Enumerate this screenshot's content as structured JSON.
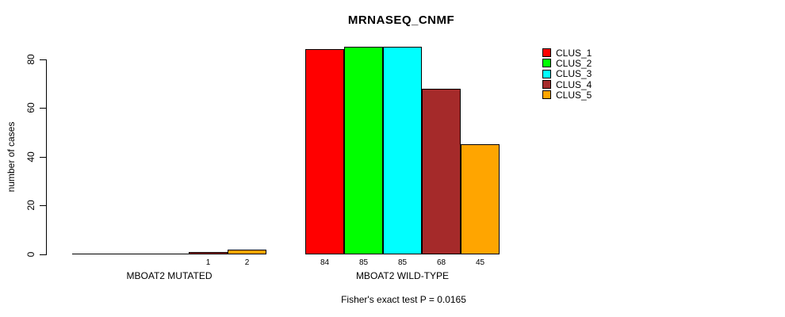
{
  "chart_data": {
    "type": "bar",
    "title": "MRNASEQ_CNMF",
    "subtitle": "Fisher's exact test P = 0.0165",
    "ylabel": "number of cases",
    "xlabel": "",
    "yticks": [
      0,
      20,
      40,
      60,
      80
    ],
    "ylim": [
      0,
      85
    ],
    "grid": false,
    "legend_position": "right-outside-top",
    "categories": [
      "MBOAT2 MUTATED",
      "MBOAT2 WILD-TYPE"
    ],
    "series": [
      {
        "name": "CLUS_1",
        "color": "#FF0000",
        "values": [
          0,
          84
        ]
      },
      {
        "name": "CLUS_2",
        "color": "#00FF00",
        "values": [
          0,
          85
        ]
      },
      {
        "name": "CLUS_3",
        "color": "#00FFFF",
        "values": [
          0,
          85
        ]
      },
      {
        "name": "CLUS_4",
        "color": "#A52A2A",
        "values": [
          1,
          68
        ]
      },
      {
        "name": "CLUS_5",
        "color": "#FFA500",
        "values": [
          2,
          45
        ]
      }
    ],
    "bar_value_labels": {
      "MBOAT2 MUTATED": [
        "",
        "",
        "",
        "1",
        "2"
      ],
      "MBOAT2 WILD-TYPE": [
        "84",
        "85",
        "85",
        "68",
        "45"
      ]
    },
    "axis_color": "#000000"
  }
}
